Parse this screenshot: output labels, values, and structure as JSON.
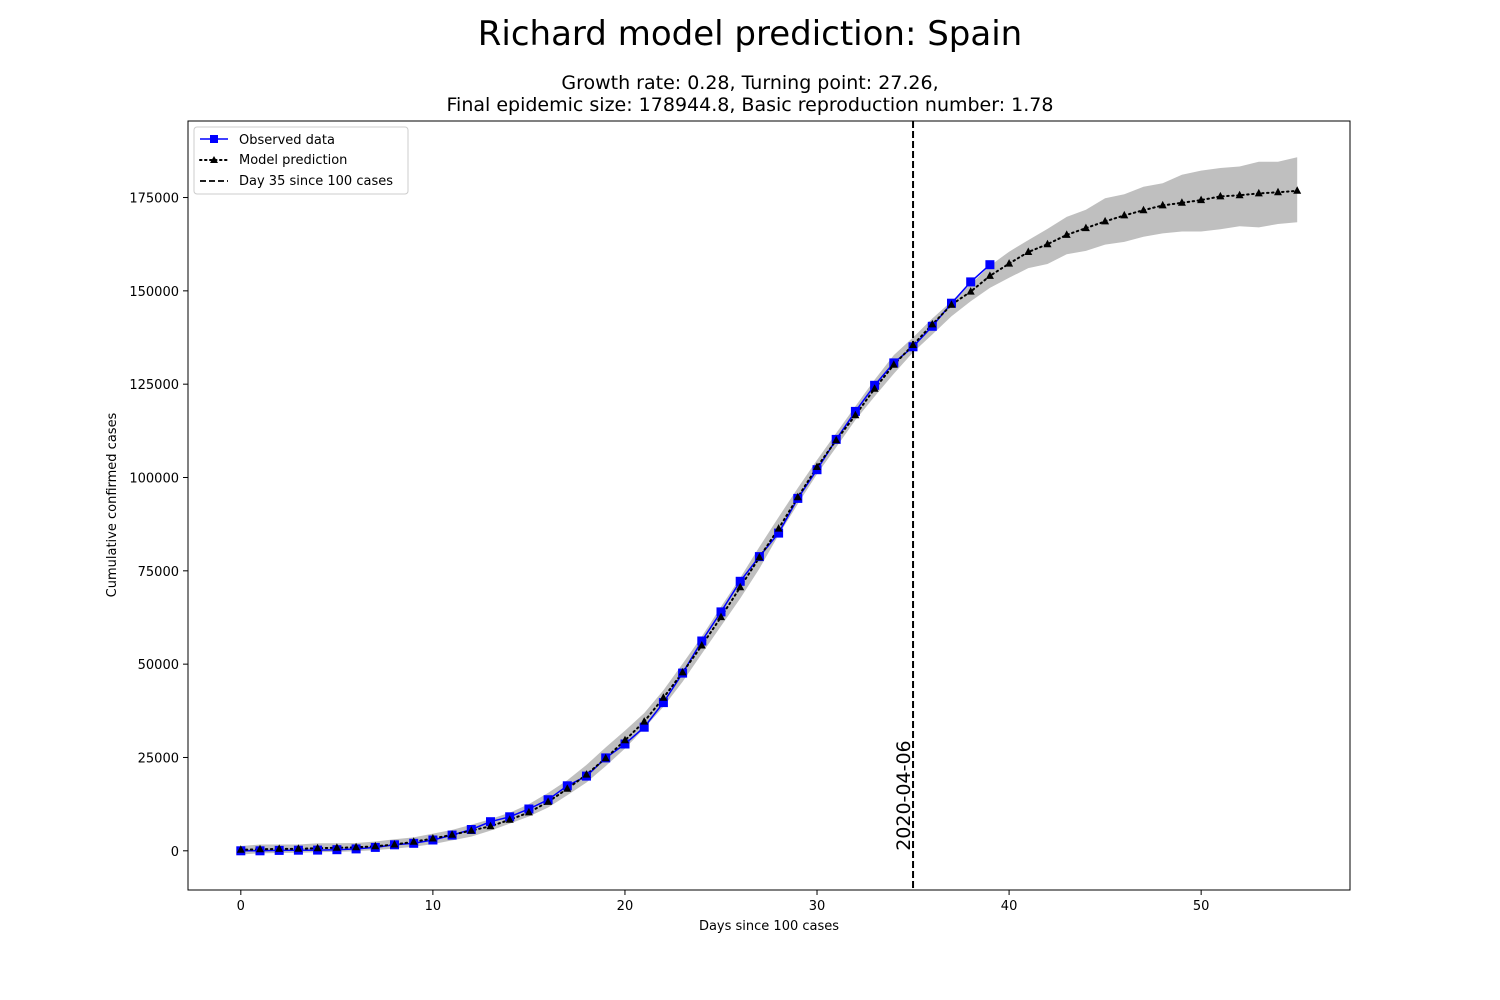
{
  "chart_data": {
    "type": "line",
    "title": "Richard model prediction: Spain",
    "subtitle_line1": "Growth rate: 0.28, Turning point: 27.26,",
    "subtitle_line2": "Final epidemic size: 178944.8, Basic reproduction number: 1.78",
    "xlabel": "Days since 100 cases",
    "ylabel": "Cumulative confirmed cases",
    "xlim": [
      -2.75,
      57.75
    ],
    "ylim": [
      -10500,
      195500
    ],
    "xticks": [
      0,
      10,
      20,
      30,
      40,
      50
    ],
    "yticks": [
      0,
      25000,
      50000,
      75000,
      100000,
      125000,
      150000,
      175000
    ],
    "legend_position": "top-left",
    "vline": {
      "x": 35,
      "label": "Day 35 since 100 cases",
      "annotation": "2020-04-06"
    },
    "series": [
      {
        "name": "Observed data",
        "color": "#0000ff",
        "marker": "square",
        "x": [
          0,
          1,
          2,
          3,
          4,
          5,
          6,
          7,
          8,
          9,
          10,
          11,
          12,
          13,
          14,
          15,
          16,
          17,
          18,
          19,
          20,
          21,
          22,
          23,
          24,
          25,
          26,
          27,
          28,
          29,
          30,
          31,
          32,
          33,
          34,
          35,
          36,
          37,
          38,
          39
        ],
        "values": [
          0,
          0,
          100,
          150,
          200,
          300,
          500,
          900,
          1600,
          2000,
          2900,
          4200,
          5700,
          7800,
          9100,
          11200,
          13700,
          17400,
          20000,
          24900,
          28600,
          33100,
          39700,
          47600,
          56200,
          64000,
          72200,
          78800,
          85100,
          94400,
          102100,
          110200,
          117700,
          124700,
          130700,
          135000,
          140500,
          146700,
          152400,
          157000
        ]
      },
      {
        "name": "Model prediction",
        "color": "#000000",
        "marker": "triangle",
        "x": [
          0,
          1,
          2,
          3,
          4,
          5,
          6,
          7,
          8,
          9,
          10,
          11,
          12,
          13,
          14,
          15,
          16,
          17,
          18,
          19,
          20,
          21,
          22,
          23,
          24,
          25,
          26,
          27,
          28,
          29,
          30,
          31,
          32,
          33,
          34,
          35,
          36,
          37,
          38,
          39,
          40,
          41,
          42,
          43,
          44,
          45,
          46,
          47,
          48,
          49,
          50,
          51,
          52,
          53,
          54,
          55
        ],
        "values": [
          300,
          400,
          500,
          550,
          700,
          800,
          950,
          1200,
          1700,
          2400,
          3300,
          4300,
          5400,
          6600,
          8300,
          10300,
          13100,
          16600,
          20400,
          24800,
          29600,
          34600,
          41000,
          47800,
          55000,
          62600,
          70600,
          78600,
          86300,
          94700,
          102800,
          110000,
          116700,
          123800,
          130200,
          135500,
          141000,
          146300,
          149800,
          154000,
          157300,
          160400,
          162500,
          165000,
          166800,
          168600,
          170200,
          171600,
          172900,
          173600,
          174300,
          175300,
          175600,
          176100,
          176400,
          176800
        ],
        "band_lower": [
          -1000,
          -700,
          -600,
          -500,
          -400,
          -300,
          -100,
          200,
          600,
          1100,
          1800,
          2800,
          3800,
          5400,
          7300,
          9200,
          11600,
          14900,
          18300,
          22700,
          27400,
          32800,
          38600,
          45300,
          52800,
          60200,
          67600,
          75600,
          84600,
          92900,
          100900,
          108100,
          115400,
          121700,
          127800,
          133500,
          138300,
          143200,
          147200,
          150800,
          153500,
          156100,
          157200,
          159800,
          160700,
          162400,
          163100,
          164500,
          165400,
          165900,
          165900,
          166500,
          167300,
          167000,
          167900,
          168400
        ],
        "band_upper": [
          1300,
          1700,
          1700,
          1700,
          2000,
          2000,
          2100,
          2500,
          3100,
          3600,
          4600,
          5600,
          7000,
          8500,
          10200,
          12500,
          15500,
          18900,
          23000,
          27700,
          32200,
          36900,
          43000,
          50100,
          57400,
          65400,
          73100,
          81400,
          89400,
          97200,
          104700,
          111900,
          119100,
          126200,
          132800,
          137500,
          142600,
          147200,
          151800,
          156700,
          160500,
          163600,
          166600,
          169800,
          171700,
          174800,
          175900,
          177900,
          178800,
          181100,
          182200,
          182900,
          183300,
          184600,
          184600,
          185800
        ]
      }
    ]
  }
}
